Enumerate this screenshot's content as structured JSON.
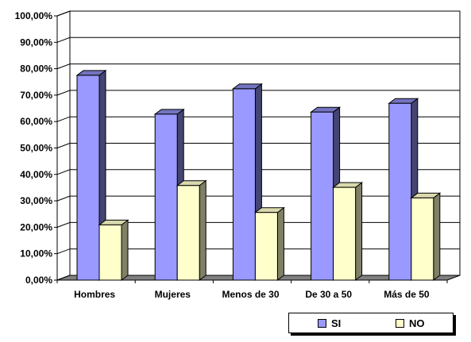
{
  "chart_data": {
    "type": "bar",
    "categories": [
      "Hombres",
      "Mujeres",
      "Menos de 30",
      "De 30 a 50",
      "Más de 50"
    ],
    "series": [
      {
        "name": "SI",
        "values": [
          77.5,
          62.8,
          72.4,
          63.6,
          66.9
        ],
        "color": "#9999ff"
      },
      {
        "name": "NO",
        "values": [
          20.9,
          35.8,
          25.6,
          35.1,
          31.1
        ],
        "color": "#ffffcc"
      }
    ],
    "ylim": [
      0,
      100
    ],
    "yticks": [
      "0,00%",
      "10,00%",
      "20,00%",
      "30,00%",
      "40,00%",
      "50,00%",
      "60,00%",
      "70,00%",
      "80,00%",
      "90,00%",
      "100,00%"
    ],
    "grid": true,
    "style": "3d",
    "legend_position": "bottom-right"
  }
}
